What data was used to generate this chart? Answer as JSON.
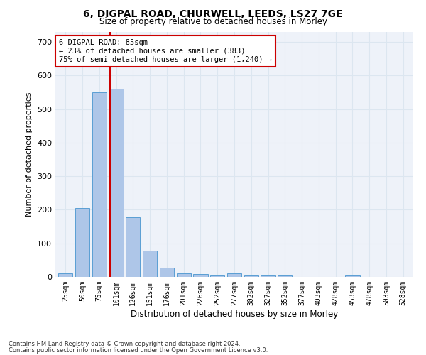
{
  "title1": "6, DIGPAL ROAD, CHURWELL, LEEDS, LS27 7GE",
  "title2": "Size of property relative to detached houses in Morley",
  "xlabel": "Distribution of detached houses by size in Morley",
  "ylabel": "Number of detached properties",
  "bar_labels": [
    "25sqm",
    "50sqm",
    "75sqm",
    "101sqm",
    "126sqm",
    "151sqm",
    "176sqm",
    "201sqm",
    "226sqm",
    "252sqm",
    "277sqm",
    "302sqm",
    "327sqm",
    "352sqm",
    "377sqm",
    "403sqm",
    "428sqm",
    "453sqm",
    "478sqm",
    "503sqm",
    "528sqm"
  ],
  "bar_values": [
    10,
    205,
    550,
    560,
    178,
    78,
    28,
    10,
    8,
    5,
    10,
    5,
    5,
    5,
    0,
    0,
    0,
    5,
    0,
    0,
    0
  ],
  "bar_color": "#aec6e8",
  "bar_edge_color": "#5a9fd4",
  "red_line_x": 2.62,
  "annotation_text": "6 DIGPAL ROAD: 85sqm\n← 23% of detached houses are smaller (383)\n75% of semi-detached houses are larger (1,240) →",
  "annotation_box_color": "#ffffff",
  "annotation_box_edge": "#cc0000",
  "grid_color": "#dce6f0",
  "background_color": "#eef2f9",
  "ylim": [
    0,
    730
  ],
  "yticks": [
    0,
    100,
    200,
    300,
    400,
    500,
    600,
    700
  ],
  "footer1": "Contains HM Land Registry data © Crown copyright and database right 2024.",
  "footer2": "Contains public sector information licensed under the Open Government Licence v3.0."
}
